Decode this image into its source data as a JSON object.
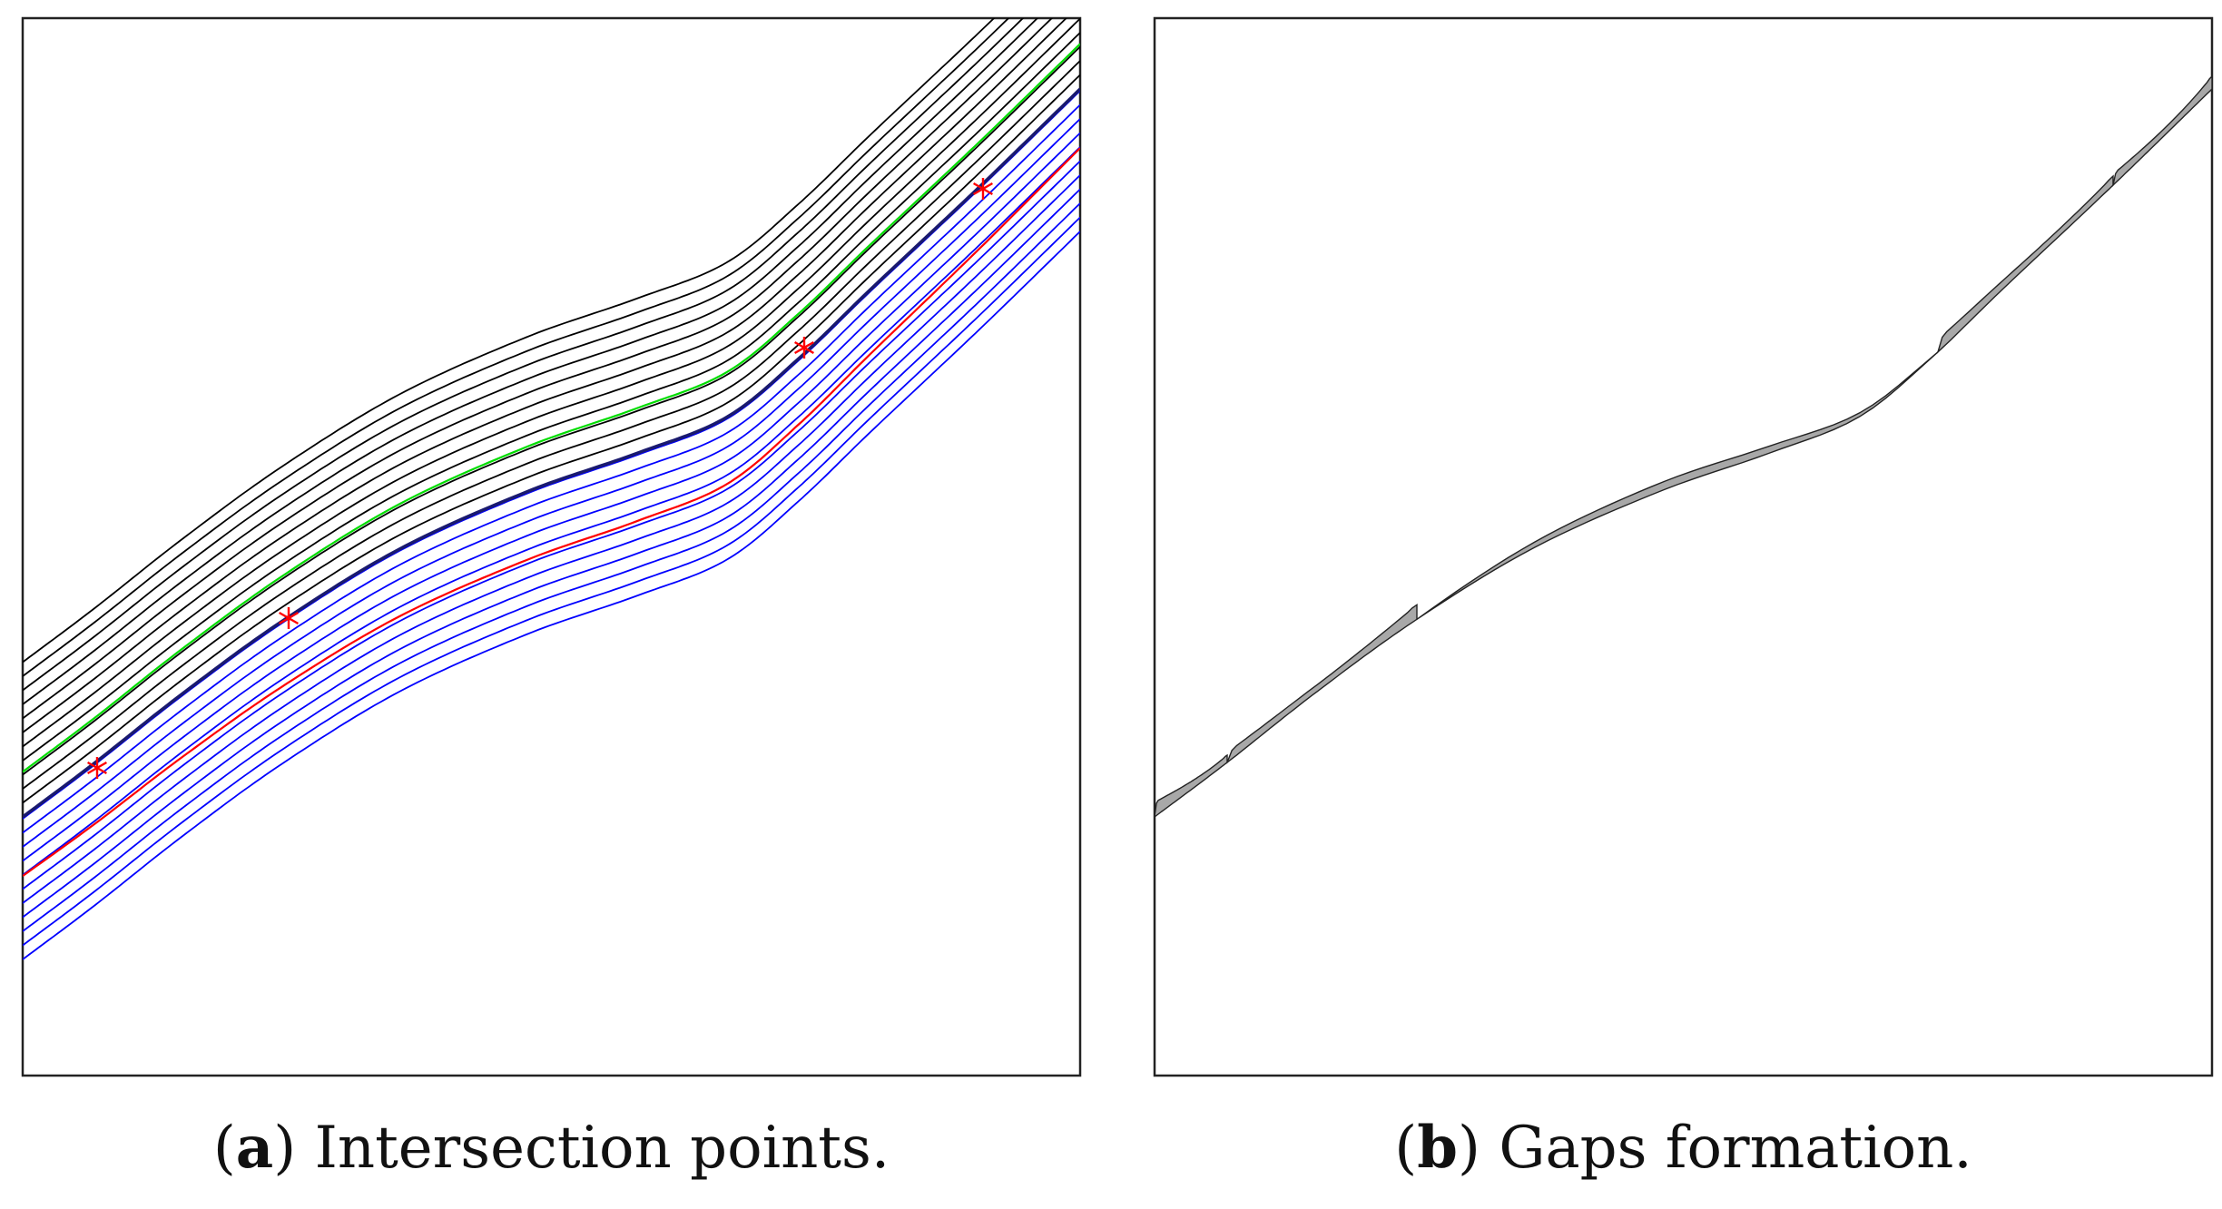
{
  "panels": [
    {
      "id": "a",
      "caption": {
        "letter": "a",
        "text": "Intersection points."
      },
      "curves": {
        "black_count": 11,
        "green_count": 1,
        "red_count": 1,
        "blue_count": 11,
        "colors": {
          "black": "#000000",
          "green": "#00dd00",
          "red": "#ff0000",
          "blue": "#0000ff"
        }
      },
      "markers": {
        "symbol": "asterisk",
        "color": "#ff0000",
        "count": 4
      }
    },
    {
      "id": "b",
      "caption": {
        "letter": "b",
        "text": "Gaps formation."
      },
      "gaps": {
        "count": 5,
        "fill": "#a8a8a8",
        "stroke": "#222222"
      }
    }
  ]
}
